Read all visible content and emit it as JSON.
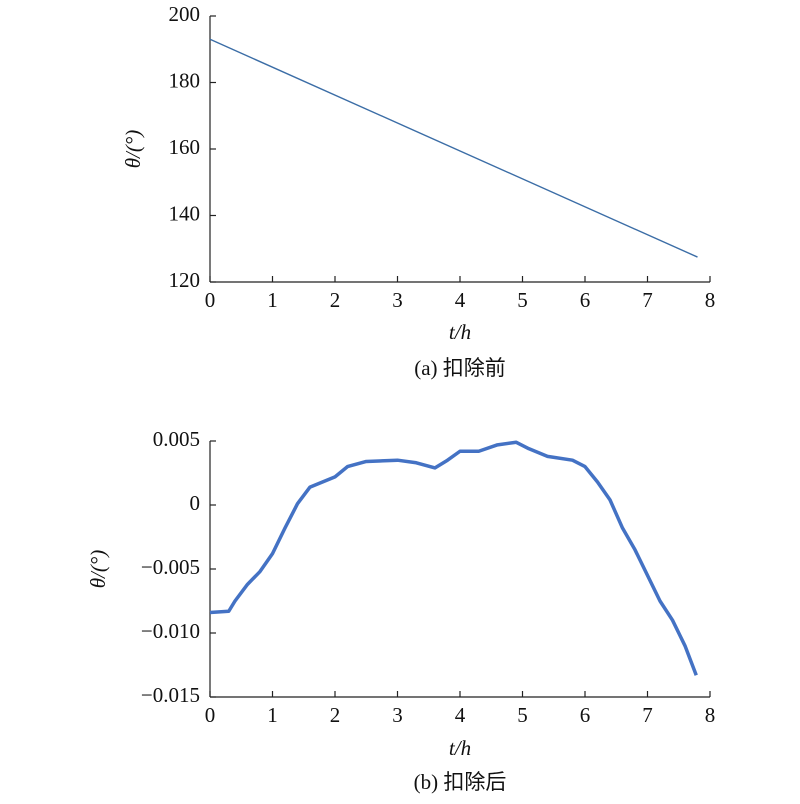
{
  "chart_data": [
    {
      "type": "line",
      "caption": "(a) 扣除前",
      "xlabel": "t/h",
      "ylabel": "θ/(°)",
      "x": [
        0,
        7.8
      ],
      "series": [
        {
          "name": "θ",
          "color": "#3b6da6",
          "values": [
            193,
            127.5
          ]
        }
      ],
      "xlim": [
        0,
        8
      ],
      "xticks": [
        0,
        1,
        2,
        3,
        4,
        5,
        6,
        7,
        8
      ],
      "ylim": [
        120,
        200
      ],
      "yticks": [
        120,
        140,
        160,
        180,
        200
      ]
    },
    {
      "type": "line",
      "caption": "(b) 扣除后",
      "xlabel": "t/h",
      "ylabel": "θ/(°)",
      "x": [
        0,
        0.3,
        0.4,
        0.6,
        0.8,
        1.0,
        1.2,
        1.4,
        1.6,
        1.8,
        2.0,
        2.2,
        2.5,
        3.0,
        3.3,
        3.6,
        3.8,
        4.0,
        4.3,
        4.6,
        4.9,
        5.1,
        5.4,
        5.8,
        6.0,
        6.2,
        6.4,
        6.6,
        6.8,
        7.0,
        7.2,
        7.4,
        7.6,
        7.78
      ],
      "series": [
        {
          "name": "θ",
          "color": "#4472c4",
          "values": [
            -0.0084,
            -0.0083,
            -0.0075,
            -0.0062,
            -0.0052,
            -0.0038,
            -0.0018,
            0.0001,
            0.0014,
            0.0018,
            0.0022,
            0.003,
            0.0034,
            0.0035,
            0.0033,
            0.0029,
            0.0035,
            0.0042,
            0.0042,
            0.0047,
            0.0049,
            0.0044,
            0.0038,
            0.0035,
            0.003,
            0.0018,
            0.0004,
            -0.0018,
            -0.0035,
            -0.0055,
            -0.0075,
            -0.009,
            -0.011,
            -0.0133
          ]
        }
      ],
      "xlim": [
        0,
        8
      ],
      "xticks": [
        0,
        1,
        2,
        3,
        4,
        5,
        6,
        7,
        8
      ],
      "ylim": [
        -0.015,
        0.005
      ],
      "yticks": [
        {
          "value": -0.015,
          "label": "−0.015"
        },
        {
          "value": -0.01,
          "label": "−0.010"
        },
        {
          "value": -0.005,
          "label": "−0.005"
        },
        0,
        0.005
      ]
    }
  ]
}
